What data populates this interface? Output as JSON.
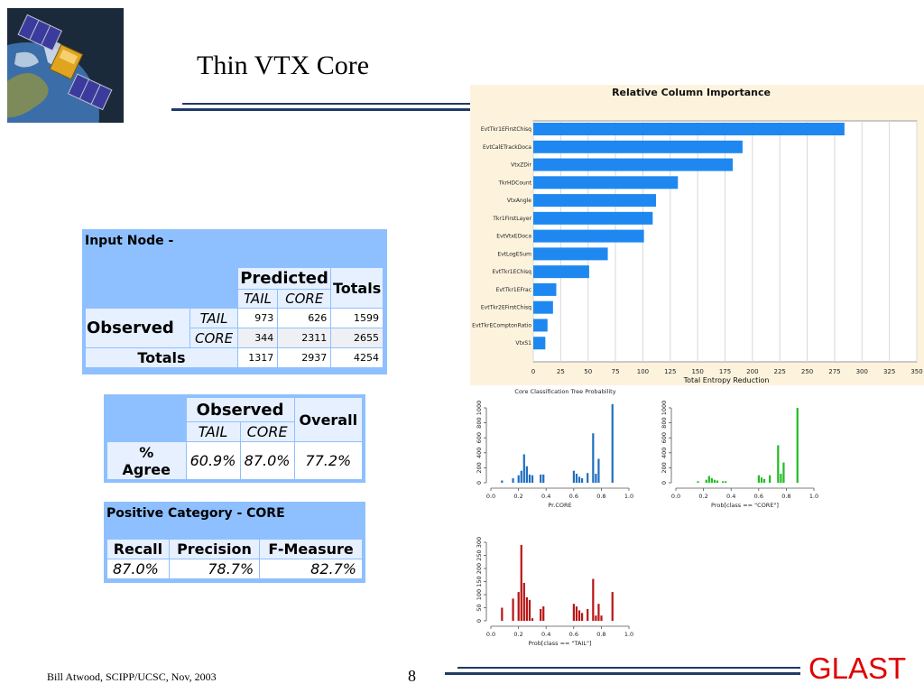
{
  "slide": {
    "title": "Thin VTX Core",
    "footer": "Bill Atwood,  SCIPP/UCSC, Nov, 2003",
    "page_number": "8",
    "logo_text": "GLAST"
  },
  "input_node": {
    "heading": "Input Node -",
    "predicted_label": "Predicted",
    "totals_label": "Totals",
    "observed_label": "Observed",
    "class_labels": [
      "TAIL",
      "CORE"
    ],
    "rows": [
      {
        "label": "TAIL",
        "values": [
          "973",
          "626",
          "1599"
        ]
      },
      {
        "label": "CORE",
        "values": [
          "344",
          "2311",
          "2655"
        ]
      }
    ],
    "totals_row": {
      "label": "Totals",
      "values": [
        "1317",
        "2937",
        "4254"
      ]
    }
  },
  "agree_table": {
    "observed_label": "Observed",
    "overall_label": "Overall",
    "class_labels": [
      "TAIL",
      "CORE"
    ],
    "row_label_line1": "%",
    "row_label_line2": "Agree",
    "values": [
      "60.9%",
      "87.0%",
      "77.2%"
    ]
  },
  "positive_table": {
    "heading": "Positive Category - CORE",
    "headers": [
      "Recall",
      "Precision",
      "F-Measure"
    ],
    "values": [
      "87.0%",
      "78.7%",
      "82.7%"
    ]
  },
  "chart_data": [
    {
      "type": "bar",
      "orientation": "horizontal",
      "title": "Relative Column Importance",
      "xlabel": "Total Entropy Reduction",
      "xlim": [
        0,
        350
      ],
      "xticks": [
        0,
        25,
        50,
        75,
        100,
        125,
        150,
        175,
        200,
        225,
        250,
        275,
        300,
        325,
        350
      ],
      "grid": true,
      "colors": {
        "bar": "#1e88f0",
        "background": "#fdf3dd"
      },
      "categories": [
        "EvtTkr1EFirstChisq",
        "EvtCalETrackDoca",
        "VtxZDir",
        "TkrHDCount",
        "VtxAngle",
        "Tkr1FirstLayer",
        "EvtVtxEDoca",
        "EvtLogESum",
        "EvtTkr1EChisq",
        "EvtTkr1EFrac",
        "EvtTkr2EFirstChisq",
        "EvtTkrEComptonRatio",
        "VtxS1"
      ],
      "values": [
        284,
        191,
        182,
        132,
        112,
        109,
        101,
        68,
        51,
        21,
        18,
        13,
        11
      ]
    },
    {
      "type": "bar",
      "title": "Core Classification Tree Probability",
      "xlabel": "Pr.CORE",
      "xlim": [
        0.0,
        1.0
      ],
      "xticks": [
        "0.0",
        "0.2",
        "0.4",
        "0.6",
        "0.8",
        "1.0"
      ],
      "ylim": [
        0,
        1000
      ],
      "yticks": [
        "0",
        "200",
        "400",
        "600",
        "800",
        "1000"
      ],
      "colors": {
        "bar": "#1f6fc0"
      },
      "x": [
        0.08,
        0.16,
        0.2,
        0.22,
        0.24,
        0.26,
        0.28,
        0.3,
        0.36,
        0.38,
        0.6,
        0.62,
        0.64,
        0.66,
        0.7,
        0.74,
        0.76,
        0.78,
        0.88
      ],
      "values": [
        30,
        60,
        100,
        160,
        380,
        220,
        110,
        100,
        110,
        110,
        160,
        120,
        80,
        60,
        130,
        660,
        120,
        320,
        1050
      ]
    },
    {
      "type": "bar",
      "title": "",
      "xlabel": "Prob[class == \"CORE\"]",
      "xlim": [
        0.0,
        1.0
      ],
      "xticks": [
        "0.0",
        "0.2",
        "0.4",
        "0.6",
        "0.8",
        "1.0"
      ],
      "ylim": [
        0,
        1000
      ],
      "yticks": [
        "0",
        "200",
        "400",
        "600",
        "800",
        "1000"
      ],
      "colors": {
        "bar": "#22bb22"
      },
      "x": [
        0.16,
        0.22,
        0.24,
        0.26,
        0.28,
        0.3,
        0.34,
        0.36,
        0.6,
        0.62,
        0.64,
        0.68,
        0.74,
        0.76,
        0.78,
        0.88
      ],
      "values": [
        20,
        40,
        90,
        60,
        40,
        30,
        20,
        20,
        100,
        70,
        50,
        100,
        500,
        120,
        270,
        1000
      ]
    },
    {
      "type": "bar",
      "title": "",
      "xlabel": "Prob[class == \"TAIL\"]",
      "xlim": [
        0.0,
        1.0
      ],
      "xticks": [
        "0.0",
        "0.2",
        "0.4",
        "0.6",
        "0.8",
        "1.0"
      ],
      "ylim": [
        0,
        300
      ],
      "yticks": [
        "0",
        "50",
        "100",
        "150",
        "200",
        "250",
        "300"
      ],
      "colors": {
        "bar": "#b81414"
      },
      "x": [
        0.08,
        0.16,
        0.2,
        0.22,
        0.24,
        0.26,
        0.28,
        0.3,
        0.36,
        0.38,
        0.6,
        0.62,
        0.64,
        0.66,
        0.7,
        0.74,
        0.76,
        0.78,
        0.8,
        0.88
      ],
      "values": [
        50,
        85,
        110,
        290,
        145,
        90,
        80,
        10,
        45,
        55,
        65,
        55,
        40,
        30,
        45,
        160,
        20,
        65,
        20,
        110
      ]
    }
  ]
}
